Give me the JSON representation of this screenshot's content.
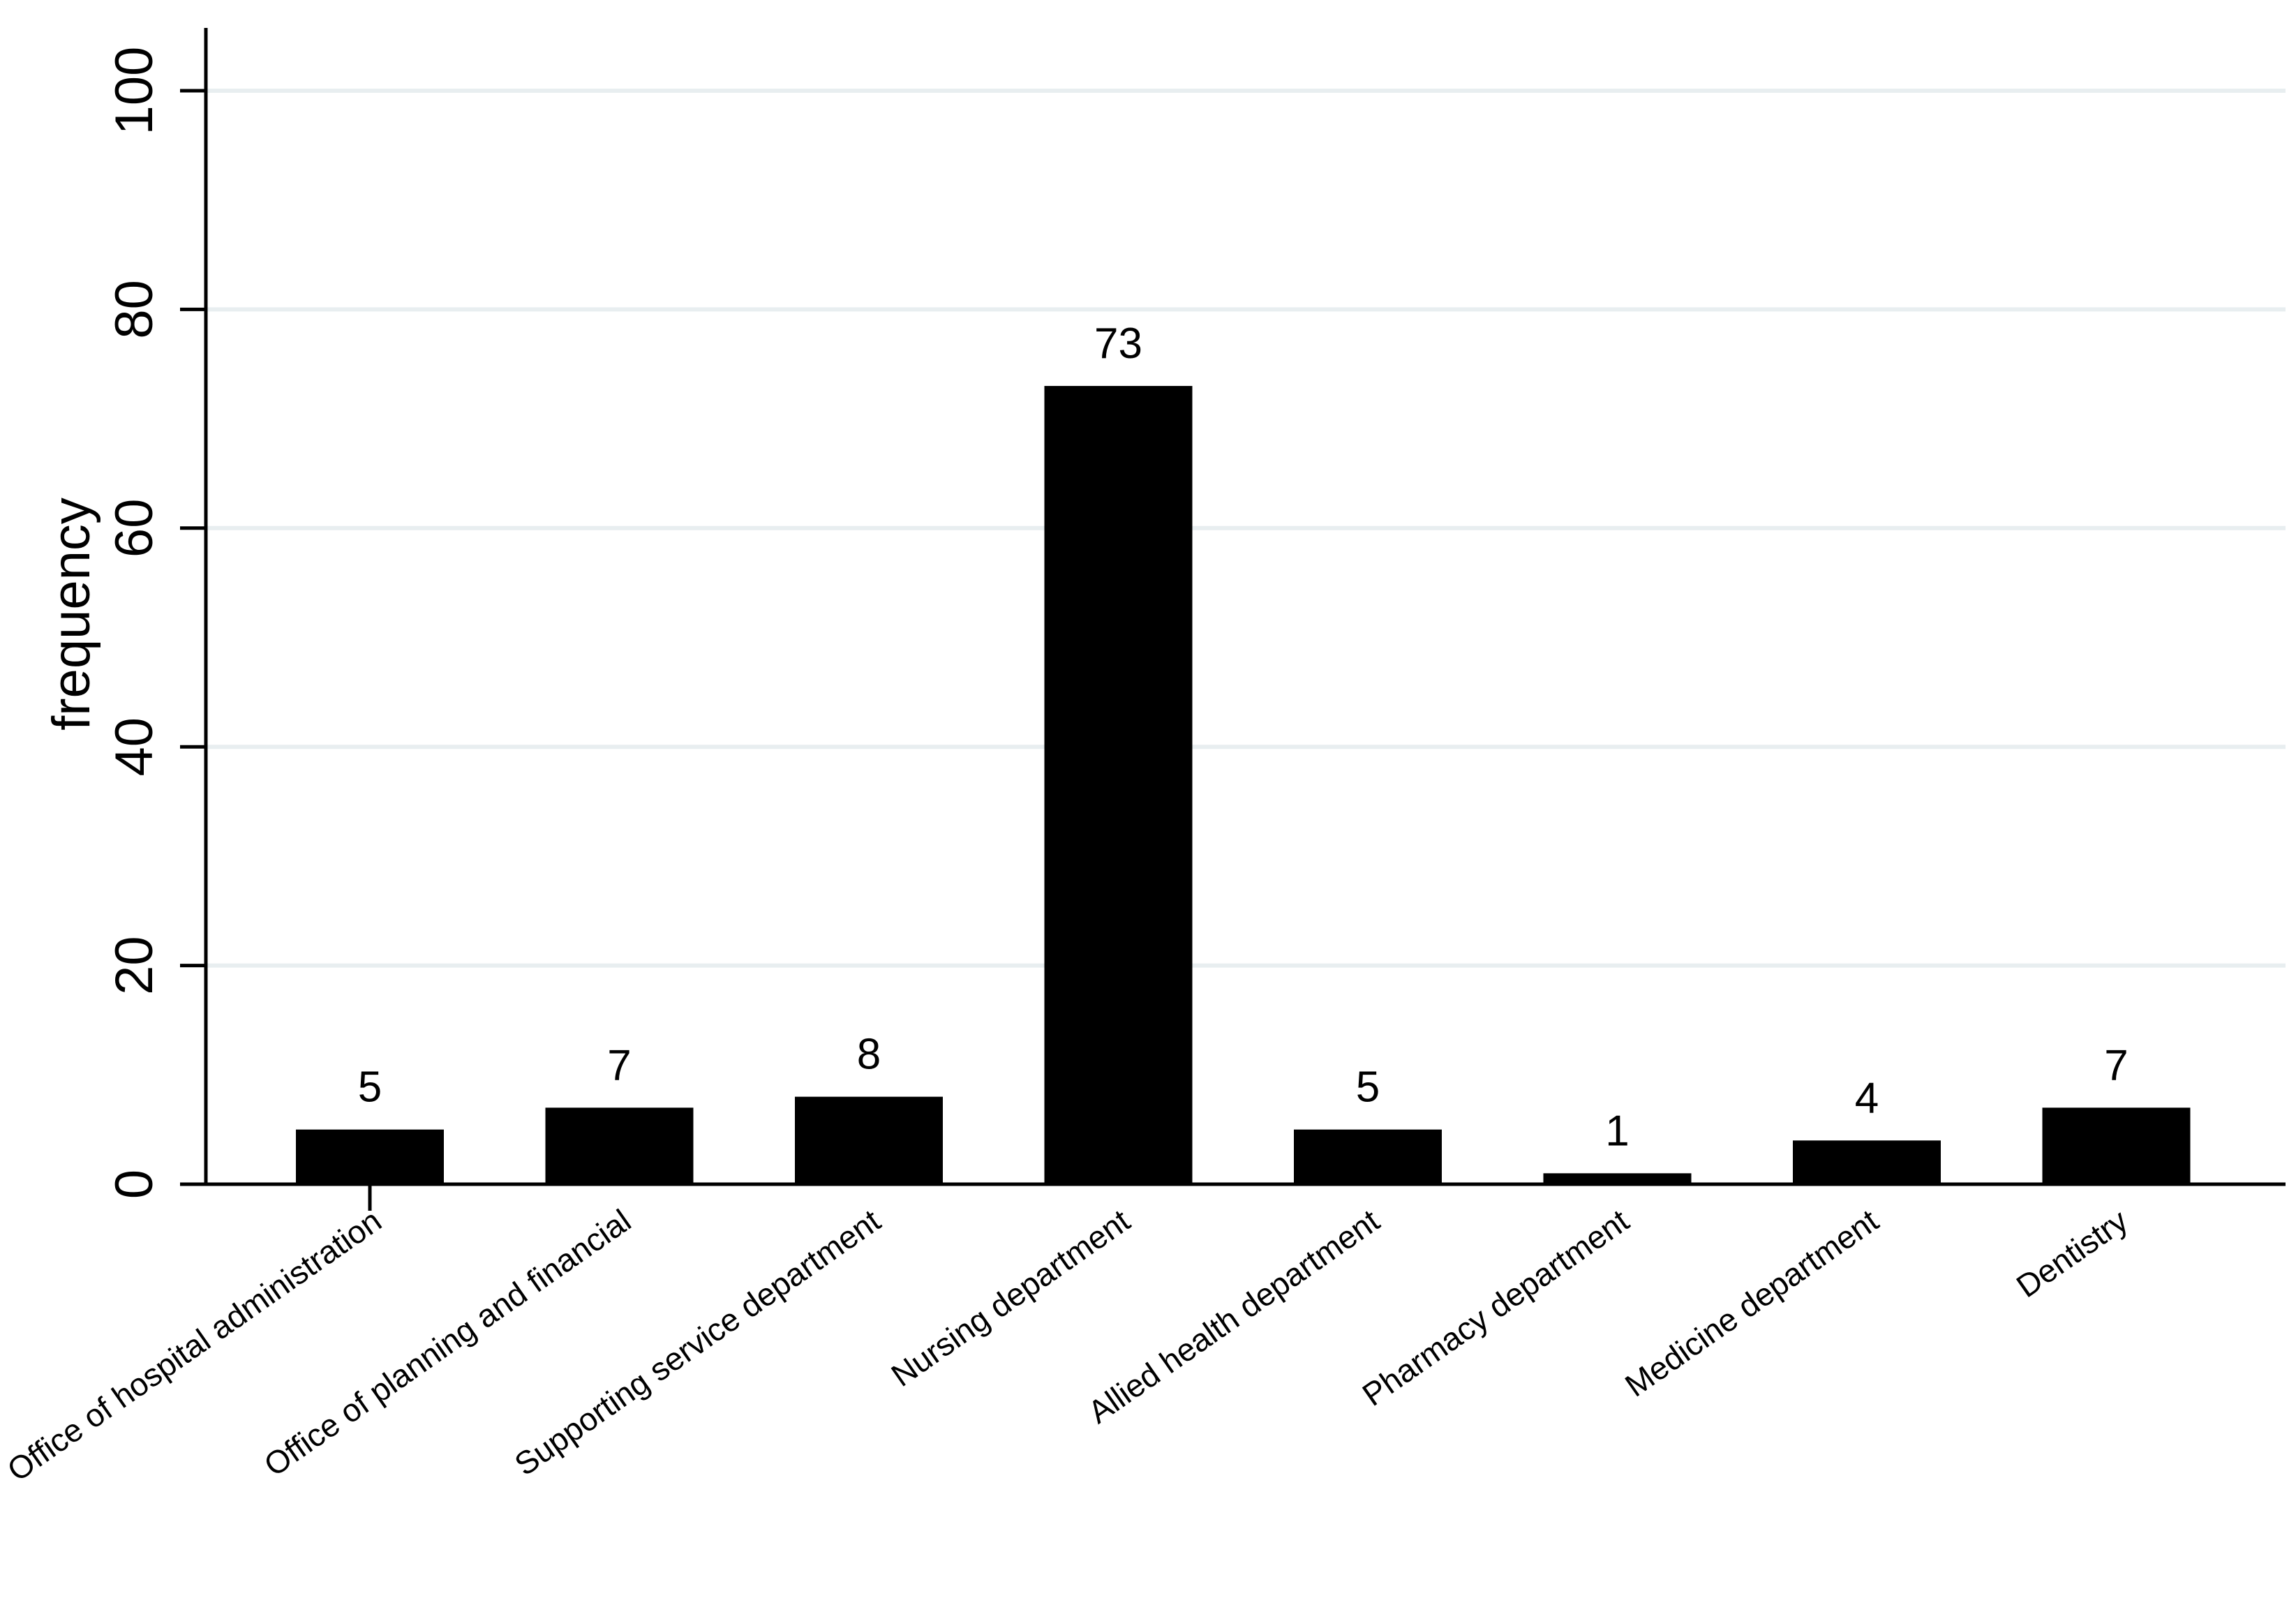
{
  "chart_data": {
    "type": "bar",
    "ylabel": "frequency",
    "xlabel": "",
    "ylim": [
      0,
      105
    ],
    "yticks": [
      0,
      20,
      40,
      60,
      80,
      100
    ],
    "grid": true,
    "legend": "none",
    "categories": [
      "Office of hospital administration",
      "Office of planning and financial",
      "Supporting service department",
      "Nursing department",
      "Allied health department",
      "Pharmacy department",
      "Medicine department",
      "Dentistry"
    ],
    "values": [
      5,
      7,
      8,
      73,
      5,
      1,
      4,
      7
    ],
    "colors": {
      "bar": "#000000",
      "grid": "#e8eef0",
      "axis": "#000000"
    }
  }
}
